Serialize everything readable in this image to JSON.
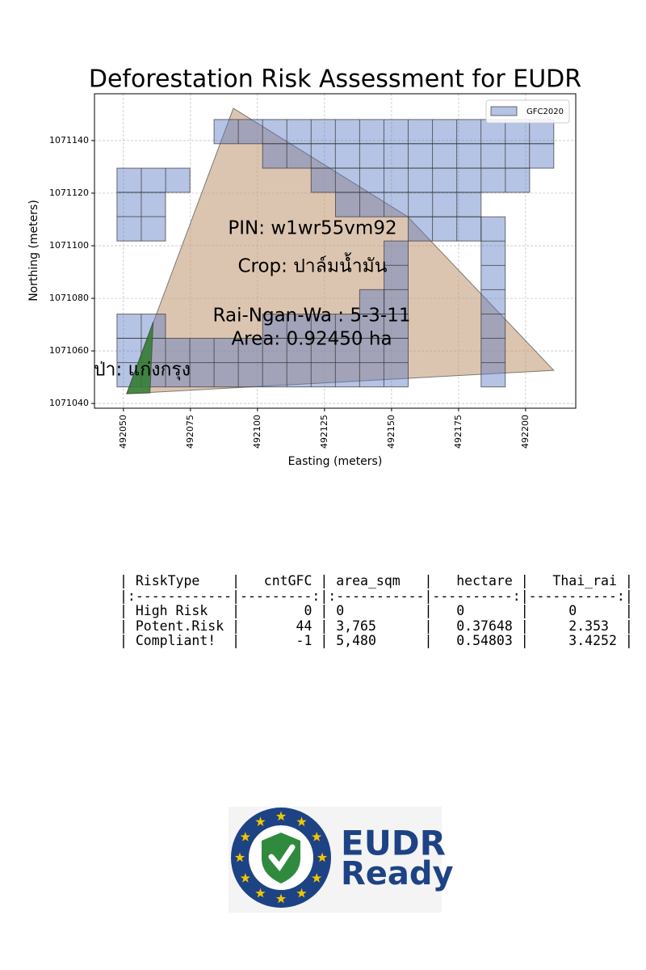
{
  "chart_data": {
    "type": "polygon",
    "title": "Deforestation Risk Assessment for EUDR",
    "x_label": "Easting (meters)",
    "y_label": "Northing (meters)",
    "xlim": [
      492039.2,
      492218.7
    ],
    "ylim": [
      1071038.2,
      1071157.8
    ],
    "xticks": [
      492050,
      492075,
      492100,
      492125,
      492150,
      492175,
      492200
    ],
    "yticks": [
      1071040,
      1071060,
      1071080,
      1071100,
      1071120,
      1071140
    ],
    "grid": true,
    "legend": "upper right",
    "series": [
      {
        "name": "GFC2020",
        "color": "#5a7bc4",
        "cell_size": [
          9.05,
          9.25
        ],
        "rects": [
          {
            "x": [
              492083.8,
              492210.5
            ],
            "y": [
              1071138.8,
              1071148.0
            ]
          },
          {
            "x": [
              492101.9,
              492210.5
            ],
            "y": [
              1071129.5,
              1071138.8
            ]
          },
          {
            "x": [
              492120.0,
              492201.5
            ],
            "y": [
              1071120.3,
              1071129.5
            ]
          },
          {
            "x": [
              492047.6,
              492074.8
            ],
            "y": [
              1071120.3,
              1071129.5
            ]
          },
          {
            "x": [
              492047.6,
              492065.7
            ],
            "y": [
              1071101.8,
              1071120.3
            ]
          },
          {
            "x": [
              492129.1,
              492183.4
            ],
            "y": [
              1071111.0,
              1071120.3
            ]
          },
          {
            "x": [
              492156.2,
              492183.4
            ],
            "y": [
              1071101.8,
              1071111.0
            ]
          },
          {
            "x": [
              492183.4,
              492192.4
            ],
            "y": [
              1071046.3,
              1071111.0
            ]
          },
          {
            "x": [
              492147.2,
              492156.2
            ],
            "y": [
              1071074.0,
              1071101.8
            ]
          },
          {
            "x": [
              492138.1,
              492147.2
            ],
            "y": [
              1071074.0,
              1071083.3
            ]
          },
          {
            "x": [
              492101.9,
              492156.2
            ],
            "y": [
              1071064.8,
              1071074.0
            ]
          },
          {
            "x": [
              492047.6,
              492065.7
            ],
            "y": [
              1071064.8,
              1071074.0
            ]
          },
          {
            "x": [
              492047.6,
              492156.2
            ],
            "y": [
              1071046.3,
              1071064.8
            ]
          }
        ]
      }
    ],
    "plot": {
      "color": "#c49e7c",
      "x": [
        492091.0,
        492156.0,
        492210.5,
        492051.2
      ],
      "y": [
        1071152.3,
        1071111.1,
        1071052.6,
        1071043.7
      ]
    },
    "forest": {
      "color": "#2f7d2f",
      "x": [
        492051.2,
        492061.1,
        492059.9
      ],
      "y": [
        1071043.7,
        1071071.1,
        1071044.0
      ]
    },
    "annotations": [
      "PIN: w1wr55vm92",
      "Crop: ปาล์มน้ำมัน",
      "Rai-Ngan-Wa : 5-3-11",
      "Area: 0.92450 ha",
      "ป่า: แก่งกรุง"
    ]
  },
  "table": {
    "lines": [
      "| RiskType    |   cntGFC | area_sqm   |   hectare |   Thai_rai |",
      "|:------------|---------:|:-----------|----------:|-----------:|",
      "| High Risk   |        0 | 0          |   0       |     0      |",
      "| Potent.Risk |       44 | 3,765      |   0.37648 |     2.353  |",
      "| Compliant!  |       -1 | 5,480      |   0.54803 |     3.4252 |"
    ]
  },
  "logo": {
    "line1": "EUDR",
    "line2": "Ready"
  }
}
